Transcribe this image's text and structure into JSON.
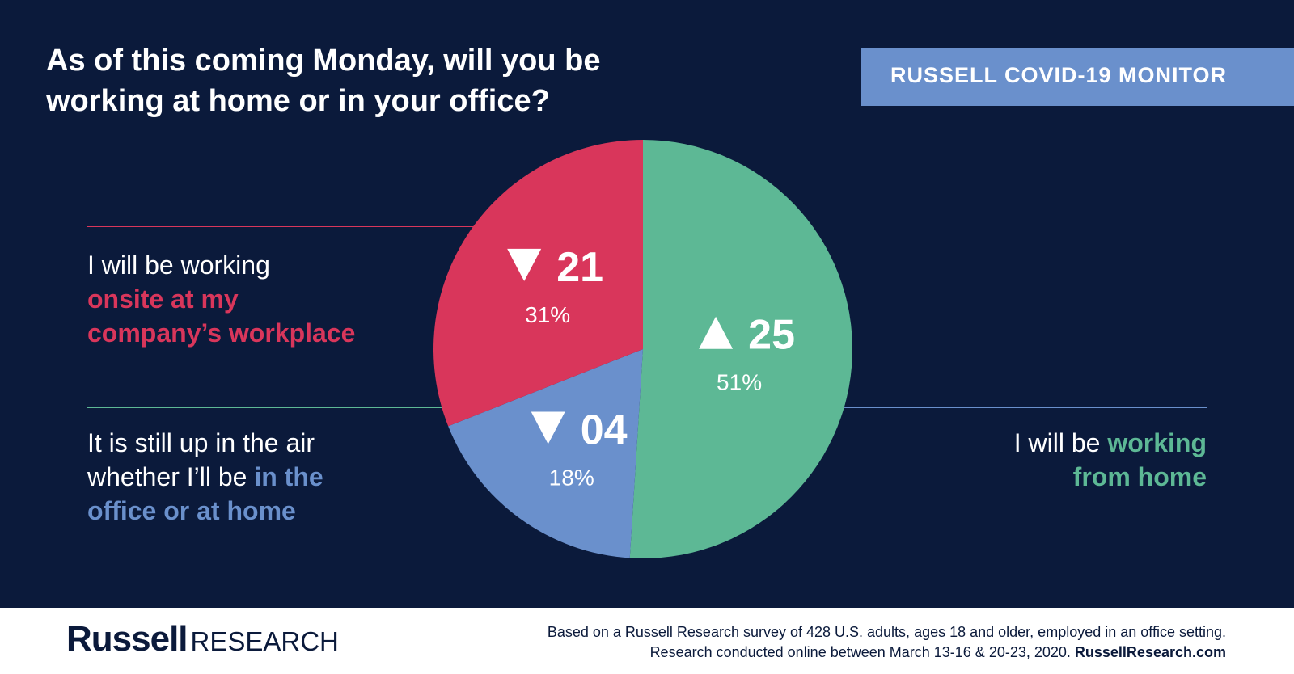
{
  "title": {
    "line1": "As of this coming Monday, will you be",
    "line2": "working at home or in your office?"
  },
  "badge": "RUSSELL COVID-19 MONITOR",
  "colors": {
    "background": "#0b1a3b",
    "onsite": "#d9365b",
    "undecided": "#6a90cc",
    "home": "#5db895",
    "white": "#ffffff"
  },
  "labels": {
    "onsite": {
      "plain": "I will be working",
      "highlight1": "onsite at my",
      "highlight2": "company’s workplace"
    },
    "undecided": {
      "line1": "It is still up in the air",
      "line2_plain": "whether I’ll be ",
      "line2_highlight": "in the",
      "line3_highlight": "office or at home"
    },
    "home": {
      "plain": "I will be ",
      "highlight1": "working",
      "highlight2": "from home"
    }
  },
  "chart_data": {
    "type": "pie",
    "slices": [
      {
        "name": "working from home",
        "value": 51,
        "label": "51%",
        "change": "25",
        "direction": "up",
        "color": "#5db895"
      },
      {
        "name": "in the office or at home",
        "value": 18,
        "label": "18%",
        "change": "04",
        "direction": "down",
        "color": "#6a90cc"
      },
      {
        "name": "onsite at my company’s workplace",
        "value": 31,
        "label": "31%",
        "change": "21",
        "direction": "down",
        "color": "#d9365b"
      }
    ]
  },
  "footer": {
    "logo_bold": "Russell",
    "logo_light": "RESEARCH",
    "note_line1": "Based on a Russell Research survey of 428 U.S. adults, ages 18 and older, employed in an office setting.",
    "note_line2": "Research conducted online between March 13-16 & 20-23, 2020. ",
    "note_link": "RussellResearch.com"
  }
}
